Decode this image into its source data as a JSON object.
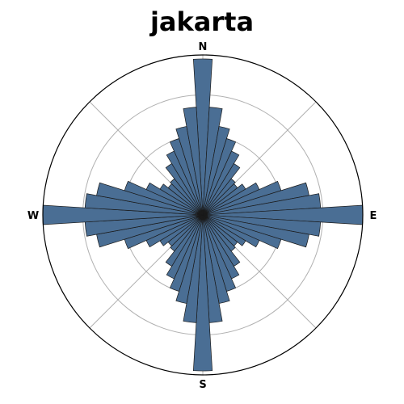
{
  "chart_data": {
    "type": "polar-bar",
    "title": "jakarta",
    "direction_labels": {
      "N": "N",
      "E": "E",
      "S": "S",
      "W": "W"
    },
    "rlim": [
      0,
      4
    ],
    "rings": [
      1,
      2,
      3,
      4
    ],
    "grid": true,
    "bar_color": "#4a6e94",
    "edge_color": "#1a1a1a",
    "values": [
      3.9,
      2.7,
      2.25,
      2.0,
      1.75,
      1.5,
      1.15,
      1.1,
      1.25,
      1.55,
      2.05,
      2.7,
      2.95,
      4.0,
      2.95,
      2.7,
      2.05,
      1.55,
      1.25,
      1.1,
      1.15,
      1.5,
      1.75,
      2.0,
      2.25,
      2.7,
      3.9,
      2.7,
      2.25,
      2.0,
      1.75,
      1.5,
      1.15,
      1.1,
      1.25,
      1.55,
      2.05,
      2.7,
      2.95,
      4.0,
      2.95,
      2.7,
      2.05,
      1.55,
      1.25,
      1.1,
      1.15,
      1.5,
      1.75,
      2.0,
      2.25,
      2.7
    ]
  }
}
